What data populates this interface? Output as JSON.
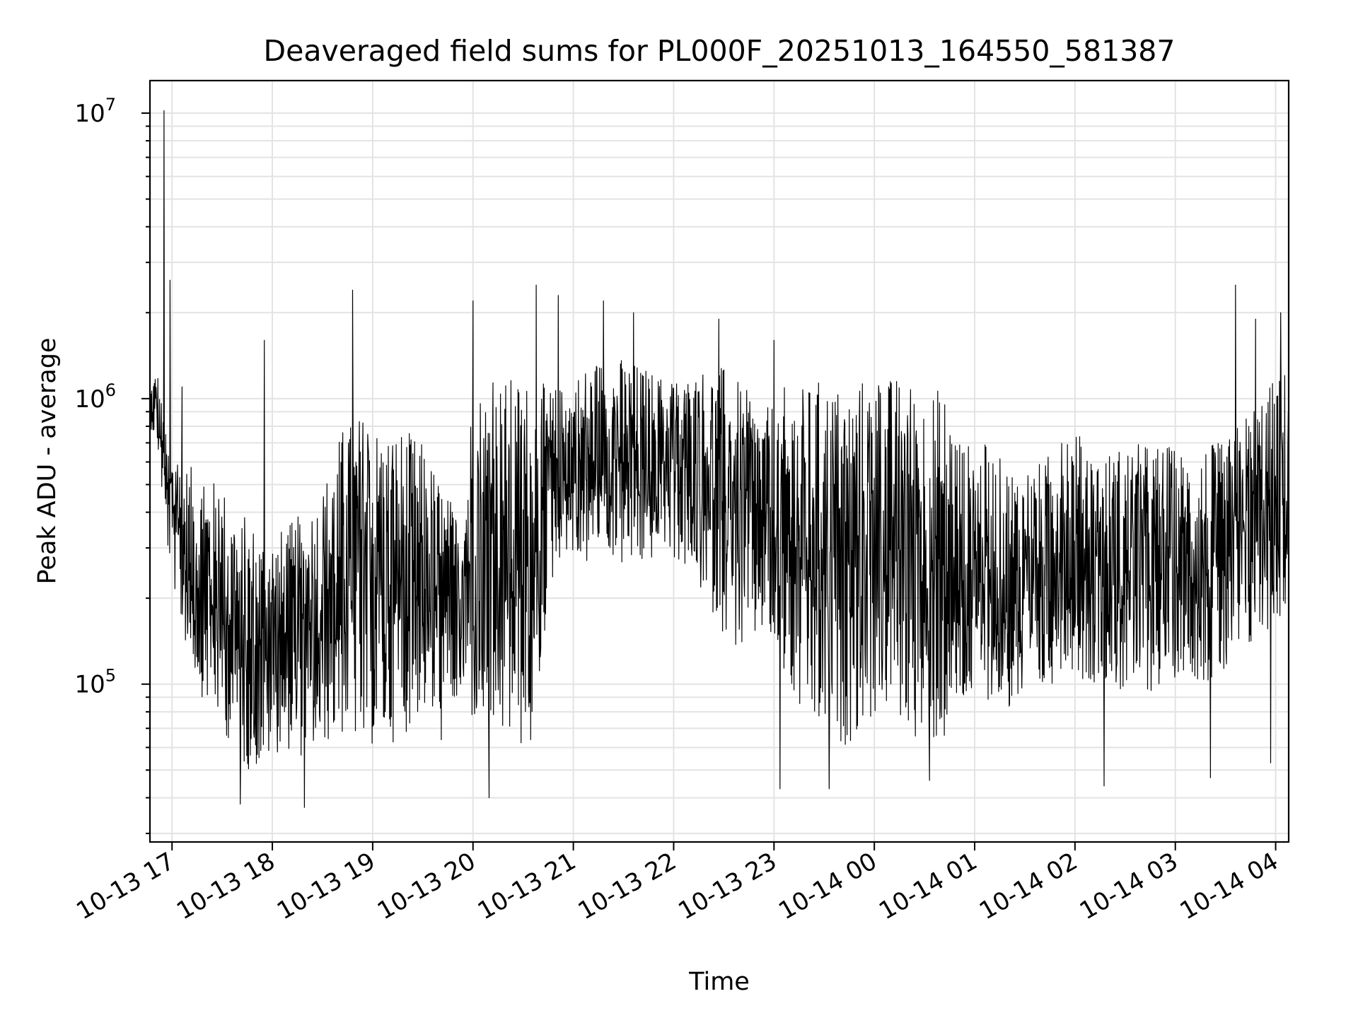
{
  "chart_data": {
    "type": "line",
    "title": "Deaveraged field sums for PL000F_20251013_164550_581387",
    "xlabel": "Time",
    "ylabel": "Peak ADU - average",
    "yscale": "log",
    "ylim": [
      28000,
      13000000
    ],
    "xlim_hours": [
      16.78,
      28.13
    ],
    "x_ticks": [
      {
        "hour": 17,
        "label": "10-13 17"
      },
      {
        "hour": 18,
        "label": "10-13 18"
      },
      {
        "hour": 19,
        "label": "10-13 19"
      },
      {
        "hour": 20,
        "label": "10-13 20"
      },
      {
        "hour": 21,
        "label": "10-13 21"
      },
      {
        "hour": 22,
        "label": "10-13 22"
      },
      {
        "hour": 23,
        "label": "10-13 23"
      },
      {
        "hour": 24,
        "label": "10-14 00"
      },
      {
        "hour": 25,
        "label": "10-14 01"
      },
      {
        "hour": 26,
        "label": "10-14 02"
      },
      {
        "hour": 27,
        "label": "10-14 03"
      },
      {
        "hour": 28,
        "label": "10-14 04"
      }
    ],
    "y_major_ticks": [
      {
        "value": 100000,
        "base": "10",
        "exp": "5"
      },
      {
        "value": 1000000,
        "base": "10",
        "exp": "6"
      },
      {
        "value": 10000000,
        "base": "10",
        "exp": "7"
      }
    ],
    "grid": true,
    "line_color": "#000000",
    "series_envelope": {
      "description_units": "hour since 10-13 00:00, low/high ADU",
      "hours": [
        16.78,
        16.85,
        16.95,
        17.1,
        17.3,
        17.5,
        17.7,
        17.9,
        18.1,
        18.3,
        18.5,
        18.7,
        18.9,
        19.1,
        19.3,
        19.5,
        19.7,
        19.85,
        20.0,
        20.2,
        20.4,
        20.6,
        20.75,
        20.9,
        21.1,
        21.3,
        21.5,
        21.7,
        21.9,
        22.1,
        22.3,
        22.5,
        22.7,
        22.9,
        23.1,
        23.3,
        23.5,
        23.7,
        23.9,
        24.1,
        24.3,
        24.5,
        24.7,
        24.9,
        25.1,
        25.3,
        25.5,
        25.7,
        25.9,
        26.1,
        26.3,
        26.5,
        26.7,
        26.9,
        27.1,
        27.3,
        27.5,
        27.7,
        27.9,
        28.13
      ],
      "low": [
        800000,
        700000,
        300000,
        150000,
        90000,
        70000,
        50000,
        50000,
        60000,
        55000,
        60000,
        65000,
        60000,
        60000,
        65000,
        80000,
        60000,
        90000,
        70000,
        60000,
        60000,
        55000,
        200000,
        300000,
        250000,
        300000,
        250000,
        250000,
        300000,
        250000,
        200000,
        150000,
        120000,
        150000,
        100000,
        70000,
        60000,
        60000,
        70000,
        80000,
        70000,
        60000,
        60000,
        80000,
        90000,
        80000,
        80000,
        90000,
        120000,
        100000,
        100000,
        90000,
        90000,
        100000,
        110000,
        100000,
        100000,
        120000,
        150000,
        180000
      ],
      "high": [
        1100000,
        1300000,
        700000,
        600000,
        550000,
        500000,
        400000,
        350000,
        350000,
        400000,
        500000,
        800000,
        900000,
        800000,
        800000,
        700000,
        500000,
        400000,
        1100000,
        1200000,
        1200000,
        1200000,
        1100000,
        1100000,
        1300000,
        1400000,
        1400000,
        1300000,
        1200000,
        1200000,
        1300000,
        1300000,
        1100000,
        900000,
        1100000,
        1100000,
        1200000,
        1100000,
        1200000,
        1200000,
        1200000,
        1100000,
        1100000,
        700000,
        700000,
        600000,
        600000,
        600000,
        900000,
        700000,
        650000,
        700000,
        700000,
        700000,
        650000,
        700000,
        700000,
        900000,
        1100000,
        1300000
      ],
      "spikes": [
        {
          "hour": 16.92,
          "value": 10200000
        },
        {
          "hour": 16.98,
          "value": 2600000
        },
        {
          "hour": 17.1,
          "value": 1100000
        },
        {
          "hour": 17.92,
          "value": 1600000
        },
        {
          "hour": 18.8,
          "value": 2400000
        },
        {
          "hour": 20.0,
          "value": 2200000
        },
        {
          "hour": 20.63,
          "value": 2500000
        },
        {
          "hour": 20.85,
          "value": 2300000
        },
        {
          "hour": 21.3,
          "value": 2200000
        },
        {
          "hour": 21.6,
          "value": 2000000
        },
        {
          "hour": 22.45,
          "value": 1900000
        },
        {
          "hour": 23.0,
          "value": 1600000
        },
        {
          "hour": 27.6,
          "value": 2500000
        },
        {
          "hour": 27.8,
          "value": 1900000
        },
        {
          "hour": 28.05,
          "value": 2000000
        }
      ],
      "dips": [
        {
          "hour": 17.68,
          "value": 38000
        },
        {
          "hour": 18.32,
          "value": 37000
        },
        {
          "hour": 20.16,
          "value": 40000
        },
        {
          "hour": 23.06,
          "value": 43000
        },
        {
          "hour": 23.55,
          "value": 43000
        },
        {
          "hour": 24.55,
          "value": 46000
        },
        {
          "hour": 26.29,
          "value": 44000
        },
        {
          "hour": 27.35,
          "value": 47000
        },
        {
          "hour": 27.95,
          "value": 53000
        }
      ]
    }
  }
}
